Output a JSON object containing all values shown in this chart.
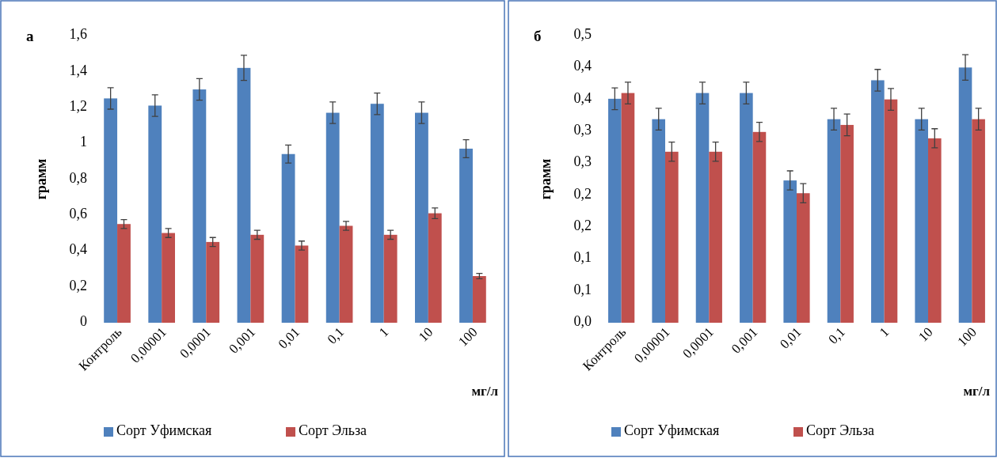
{
  "chart_data": [
    {
      "type": "bar",
      "title": "а",
      "ylabel": "грамм",
      "xlabel": "мг/л",
      "categories": [
        "Контроль",
        "0,00001",
        "0,0001",
        "0,001",
        "0,01",
        "0,1",
        "1",
        "10",
        "100"
      ],
      "series": [
        {
          "name": "Сорт Уфимская",
          "color": "#4f81bd",
          "values": [
            1.25,
            1.21,
            1.3,
            1.42,
            0.94,
            1.17,
            1.22,
            1.17,
            0.97
          ],
          "errors": [
            0.06,
            0.06,
            0.06,
            0.07,
            0.05,
            0.06,
            0.06,
            0.06,
            0.05
          ]
        },
        {
          "name": "Сорт Эльза",
          "color": "#c0504d",
          "values": [
            0.55,
            0.5,
            0.45,
            0.49,
            0.43,
            0.54,
            0.49,
            0.61,
            0.26
          ],
          "errors": [
            0.025,
            0.025,
            0.025,
            0.025,
            0.025,
            0.025,
            0.025,
            0.03,
            0.015
          ]
        }
      ],
      "ylim": [
        0,
        1.6
      ],
      "yticks": [
        0,
        {
          "value": 0.2,
          "label": "0,2"
        },
        {
          "value": 0.4,
          "label": "0,4"
        },
        {
          "value": 0.6,
          "label": "0,6"
        },
        {
          "value": 0.8,
          "label": "0,8"
        },
        1,
        {
          "value": 1.2,
          "label": "1,2"
        },
        {
          "value": 1.4,
          "label": "1,4"
        },
        {
          "value": 1.6,
          "label": "1,6"
        }
      ],
      "legend": "bottom",
      "grid": false
    },
    {
      "type": "bar",
      "title": "б",
      "ylabel": "грамм",
      "xlabel": "мг/л",
      "categories": [
        "Контроль",
        "0,00001",
        "0,0001",
        "0,001",
        "0,01",
        "0,1",
        "1",
        "10",
        "100"
      ],
      "series": [
        {
          "name": "Сорт Уфимская",
          "color": "#4f81bd",
          "values": [
            0.351,
            0.319,
            0.36,
            0.36,
            0.223,
            0.319,
            0.38,
            0.319,
            0.4
          ],
          "errors": [
            0.017,
            0.017,
            0.017,
            0.017,
            0.015,
            0.017,
            0.017,
            0.017,
            0.02
          ]
        },
        {
          "name": "Сорт Эльза",
          "color": "#c0504d",
          "values": [
            0.36,
            0.268,
            0.268,
            0.299,
            0.203,
            0.31,
            0.35,
            0.289,
            0.319
          ],
          "errors": [
            0.017,
            0.015,
            0.015,
            0.015,
            0.015,
            0.017,
            0.017,
            0.015,
            0.017
          ]
        }
      ],
      "ylim": [
        0,
        0.45
      ],
      "yticks": [
        {
          "value": 0,
          "label": "0,0"
        },
        {
          "value": 0.05,
          "label": "0,1"
        },
        {
          "value": 0.1,
          "label": "0,1"
        },
        {
          "value": 0.15,
          "label": "0,2"
        },
        {
          "value": 0.2,
          "label": "0,2"
        },
        {
          "value": 0.25,
          "label": "0,3"
        },
        {
          "value": 0.3,
          "label": "0,3"
        },
        {
          "value": 0.35,
          "label": "0,4"
        },
        {
          "value": 0.4,
          "label": "0,4"
        },
        {
          "value": 0.45,
          "label": "0,5"
        }
      ],
      "legend": "bottom",
      "grid": false
    }
  ]
}
